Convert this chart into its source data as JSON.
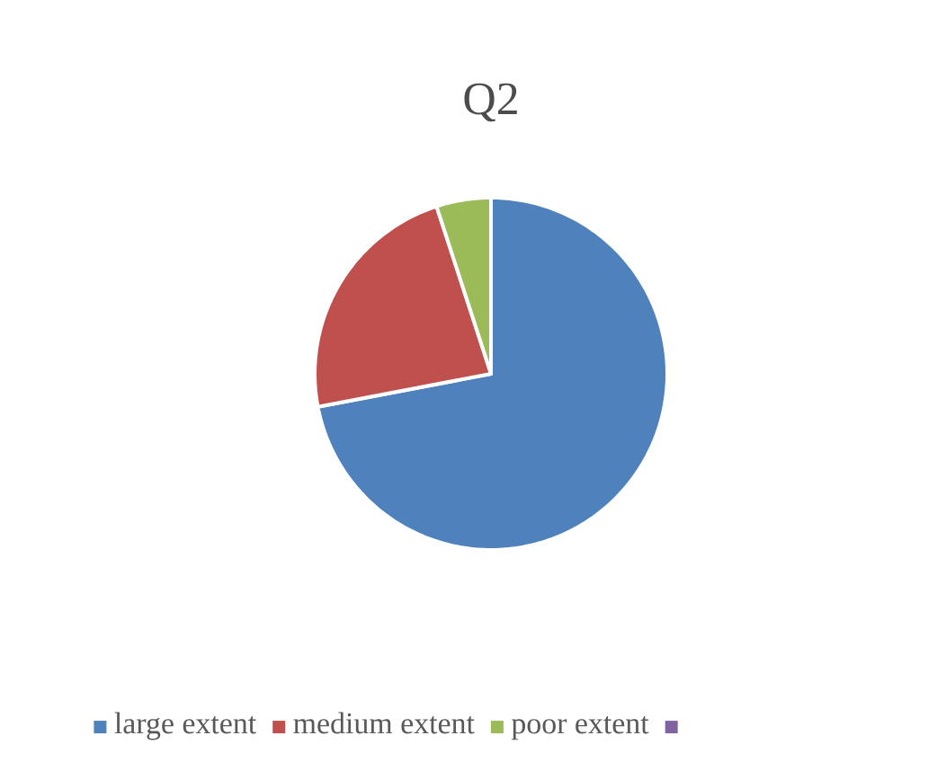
{
  "chart_data": {
    "type": "pie",
    "title": "Q2",
    "categories": [
      "large extent",
      "medium extent",
      "poor extent",
      null
    ],
    "values": [
      72,
      23,
      5,
      0
    ],
    "colors": [
      "#4f81bd",
      "#c0504d",
      "#9bbb59",
      "#8064a2"
    ],
    "legend": "bottom"
  }
}
